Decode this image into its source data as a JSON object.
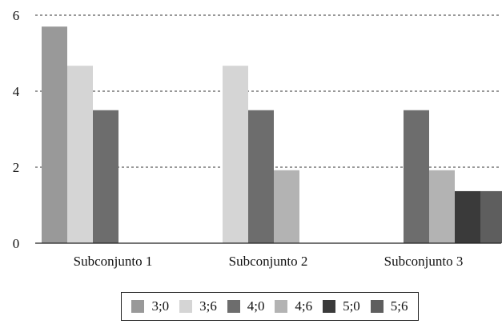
{
  "chart_data": {
    "type": "bar",
    "title": "",
    "xlabel": "",
    "ylabel": "",
    "categories": [
      "Subconjunto 1",
      "Subconjunto 2",
      "Subconjunto 3"
    ],
    "ylim": [
      0,
      6
    ],
    "yticks": [
      0,
      2,
      4,
      6
    ],
    "grid": "horizontal dashed",
    "legend_position": "bottom",
    "series": [
      {
        "name": "3;0",
        "color": "#999999",
        "values": [
          5.7,
          null,
          null
        ]
      },
      {
        "name": "3;6",
        "color": "#d5d5d5",
        "values": [
          4.67,
          4.67,
          null
        ]
      },
      {
        "name": "4;0",
        "color": "#6d6d6d",
        "values": [
          3.5,
          3.5,
          3.5
        ]
      },
      {
        "name": "4;6",
        "color": "#b3b3b3",
        "values": [
          null,
          1.92,
          1.92
        ]
      },
      {
        "name": "5;0",
        "color": "#3a3a3a",
        "values": [
          null,
          null,
          1.37
        ]
      },
      {
        "name": "5;6",
        "color": "#5e5e5e",
        "values": [
          null,
          null,
          1.37
        ]
      }
    ]
  }
}
